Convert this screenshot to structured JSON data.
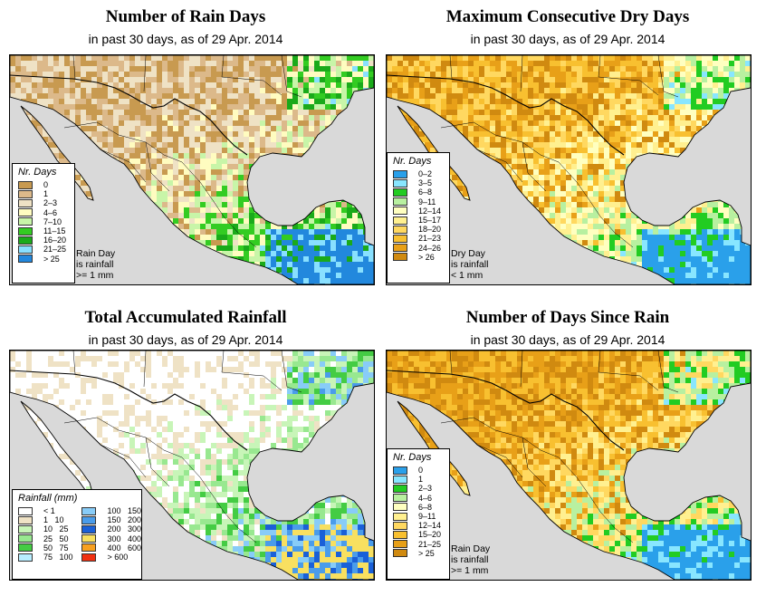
{
  "panels": [
    {
      "title": "Number of Rain Days",
      "subtitle": "in past 30 days, as of  29 Apr. 2014",
      "legend_title": "Nr. Days",
      "legend": [
        {
          "label": "0",
          "color": "#c89a50"
        },
        {
          "label": "1",
          "color": "#dcb98a"
        },
        {
          "label": "2–3",
          "color": "#efe2c5"
        },
        {
          "label": "4–6",
          "color": "#fffcc0"
        },
        {
          "label": "7–10",
          "color": "#c8f5a8"
        },
        {
          "label": "11–15",
          "color": "#33cc22"
        },
        {
          "label": "16–20",
          "color": "#1aaa1a"
        },
        {
          "label": "21–25",
          "color": "#88e0ff"
        },
        {
          "label": "> 25",
          "color": "#2288dd"
        }
      ],
      "note": [
        "Rain Day",
        "is rainfall",
        ">= 1 mm"
      ]
    },
    {
      "title": "Maximum Consecutive Dry Days",
      "subtitle": "in past 30 days, as of  29 Apr. 2014",
      "legend_title": "Nr. Days",
      "legend": [
        {
          "label": "0–2",
          "color": "#2aa0ea"
        },
        {
          "label": "3–5",
          "color": "#88e6ff"
        },
        {
          "label": "6–8",
          "color": "#22cc22"
        },
        {
          "label": "9–11",
          "color": "#b8f0a0"
        },
        {
          "label": "12–14",
          "color": "#ffffc0"
        },
        {
          "label": "15–17",
          "color": "#fff090"
        },
        {
          "label": "18–20",
          "color": "#ffd860"
        },
        {
          "label": "21–23",
          "color": "#f8c030"
        },
        {
          "label": "24–26",
          "color": "#e8a018"
        },
        {
          "label": "> 26",
          "color": "#d08a10"
        }
      ],
      "note": [
        "Dry Day",
        "is rainfall",
        "< 1 mm"
      ]
    },
    {
      "title": "Total Accumulated Rainfall",
      "subtitle": "in past 30 days, as of  29 Apr. 2014",
      "legend_title": "Rainfall (mm)",
      "legend": [
        {
          "label": "< 1",
          "color": "#ffffff"
        },
        {
          "label": "1   10",
          "color": "#efe2c5"
        },
        {
          "label": "10   25",
          "color": "#c8f5b8"
        },
        {
          "label": "25   50",
          "color": "#98e890"
        },
        {
          "label": "50   75",
          "color": "#44cc44"
        },
        {
          "label": "75   100",
          "color": "#b8eeff"
        },
        {
          "label": "100   150",
          "color": "#88ccf8"
        },
        {
          "label": "150   200",
          "color": "#4a9cea"
        },
        {
          "label": "200   300",
          "color": "#1a60d8"
        },
        {
          "label": "300   400",
          "color": "#f8e060"
        },
        {
          "label": "400   600",
          "color": "#f8a020"
        },
        {
          "label": "> 600",
          "color": "#f03010"
        }
      ],
      "note": []
    },
    {
      "title": "Number of Days Since Rain",
      "subtitle": "in past 30 days, as of  29 Apr. 2014",
      "legend_title": "Nr. Days",
      "legend": [
        {
          "label": "0",
          "color": "#2aa0ea"
        },
        {
          "label": "1",
          "color": "#88e6ff"
        },
        {
          "label": "2–3",
          "color": "#22cc22"
        },
        {
          "label": "4–6",
          "color": "#b8f0a0"
        },
        {
          "label": "6–8",
          "color": "#ffffc0"
        },
        {
          "label": "9–11",
          "color": "#fff090"
        },
        {
          "label": "12–14",
          "color": "#ffd860"
        },
        {
          "label": "15–20",
          "color": "#f8c030"
        },
        {
          "label": "21–25",
          "color": "#e8a018"
        },
        {
          "label": "> 25",
          "color": "#d08a10"
        }
      ],
      "note": [
        "Rain Day",
        "is rainfall",
        ">= 1 mm"
      ]
    }
  ],
  "colors": {
    "ocean": "#d9d9d9",
    "border": "#000000"
  }
}
